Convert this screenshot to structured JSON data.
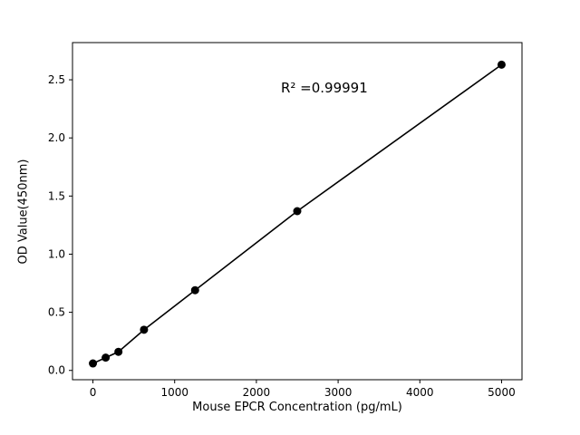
{
  "figure": {
    "background": "#ffffff"
  },
  "chart_data": {
    "type": "scatter",
    "line_through_points": true,
    "title": "",
    "xlabel": "Mouse EPCR Concentration (pg/mL)",
    "ylabel": "OD Value(450nm)",
    "x": [
      0,
      156,
      312,
      625,
      1250,
      2500,
      5000
    ],
    "y": [
      0.06,
      0.11,
      0.16,
      0.35,
      0.69,
      1.37,
      2.63
    ],
    "xlim": [
      -250,
      5250
    ],
    "ylim": [
      -0.08,
      2.82
    ],
    "xticks": [
      0,
      1000,
      2000,
      3000,
      4000,
      5000
    ],
    "xtick_labels": [
      "0",
      "1000",
      "2000",
      "3000",
      "4000",
      "5000"
    ],
    "yticks": [
      0.0,
      0.5,
      1.0,
      1.5,
      2.0,
      2.5
    ],
    "ytick_labels": [
      "0.0",
      "0.5",
      "1.0",
      "1.5",
      "2.0",
      "2.5"
    ],
    "grid": false,
    "legend": null,
    "annotation": {
      "text": "R² =0.99991",
      "x": 2300,
      "y": 2.42
    },
    "marker_color": "#000000",
    "line_color": "#000000",
    "axis_color": "#000000"
  }
}
